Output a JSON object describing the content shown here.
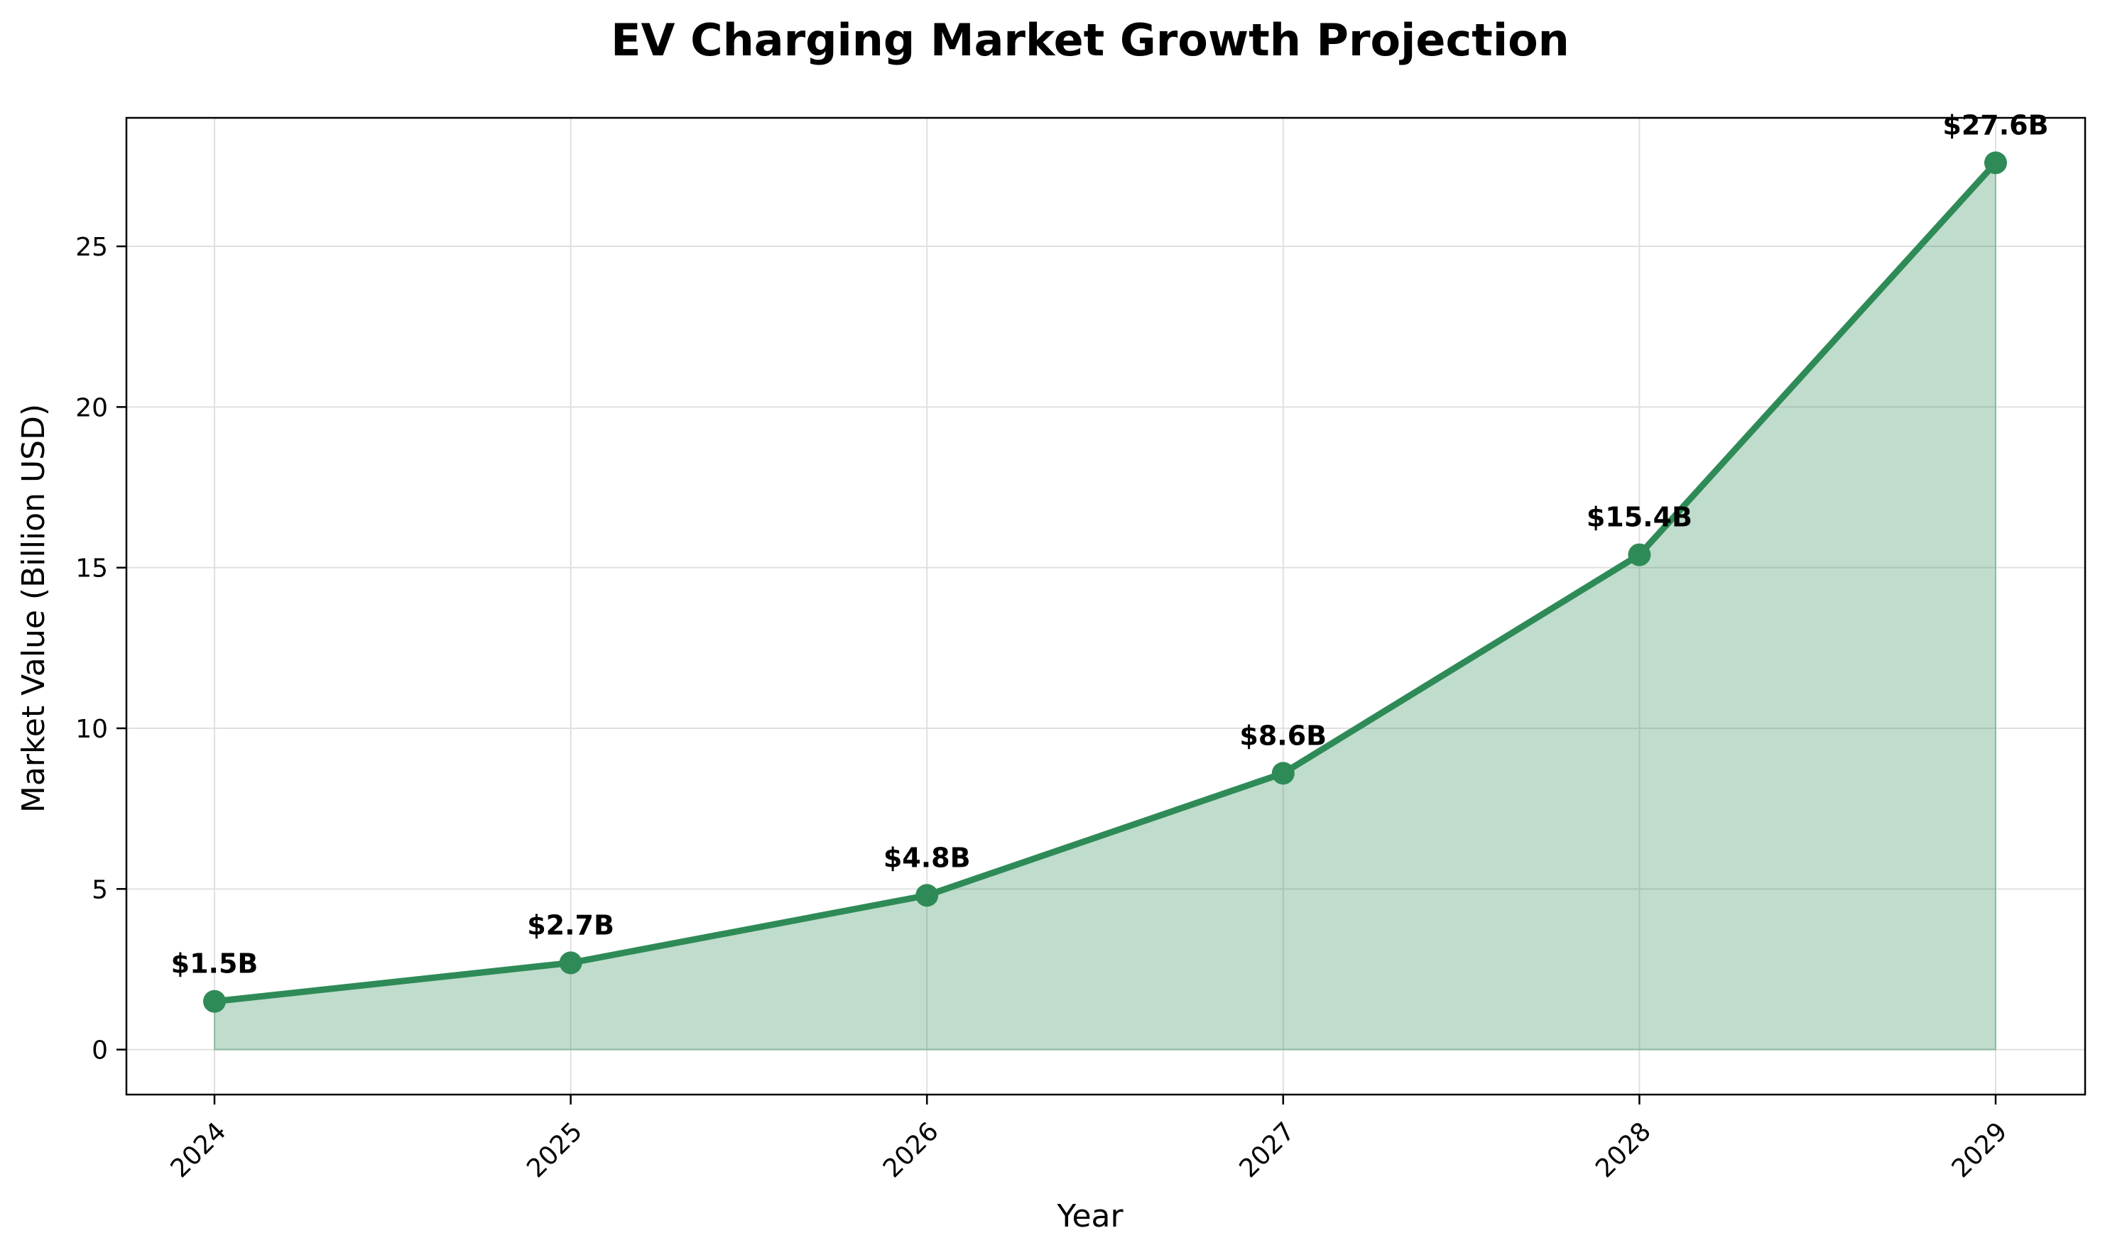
{
  "chart_data": {
    "type": "area",
    "title": "EV Charging Market Growth Projection",
    "xlabel": "Year",
    "ylabel": "Market Value (Billion USD)",
    "categories": [
      "2024",
      "2025",
      "2026",
      "2027",
      "2028",
      "2029"
    ],
    "values": [
      1.5,
      2.7,
      4.8,
      8.6,
      15.4,
      27.6
    ],
    "data_labels": [
      "$1.5B",
      "$2.7B",
      "$4.8B",
      "$8.6B",
      "$15.4B",
      "$27.6B"
    ],
    "ylim": [
      -1.4,
      29
    ],
    "yticks": [
      0,
      5,
      10,
      15,
      20,
      25
    ],
    "x_tick_rotation_deg": 45,
    "grid": true,
    "legend": "none",
    "colors": {
      "line": "#2e8b57",
      "fill": "#2e8b57",
      "grid": "#e0e0e0"
    }
  }
}
